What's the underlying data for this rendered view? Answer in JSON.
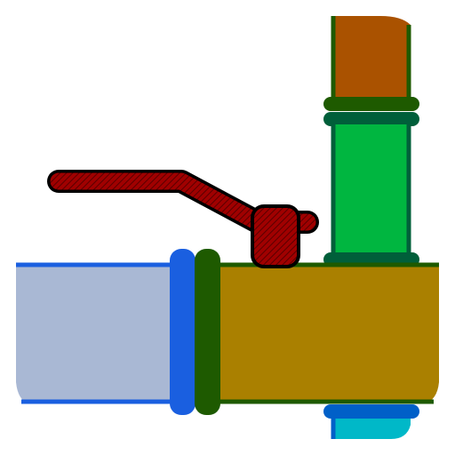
{
  "image": {
    "kind": "pipe-valve-illustration",
    "background": "#ffffff",
    "caption": ""
  },
  "parts": {
    "left_pipe": {
      "fill": "#a9b8d4",
      "edge": "#1a5fe0"
    },
    "left_flange": {
      "fill": "#1a5fe0"
    },
    "valve_body": {
      "fill": "#aa8000",
      "edge": "#1e5a00"
    },
    "valve_flange": {
      "fill": "#1e5a00"
    },
    "upper_pipe_top": {
      "fill": "#aa5200",
      "edge": "#1e5a00"
    },
    "upper_pipe_flange_top": {
      "fill": "#1e5a00"
    },
    "upper_pipe_flange_bottom": {
      "fill": "#005f3a"
    },
    "upper_pipe_bottom": {
      "fill": "#00b640",
      "edge": "#005f3a"
    },
    "upper_pipe_base_flange": {
      "fill": "#005f3a"
    },
    "lower_pipe_flange": {
      "fill": "#0060c8"
    },
    "lower_pipe": {
      "fill": "#00b8c8",
      "edge": "#0060c8"
    },
    "handle": {
      "fill": "#a00000",
      "hatch": "#5a0000",
      "outline": "#000000"
    }
  }
}
